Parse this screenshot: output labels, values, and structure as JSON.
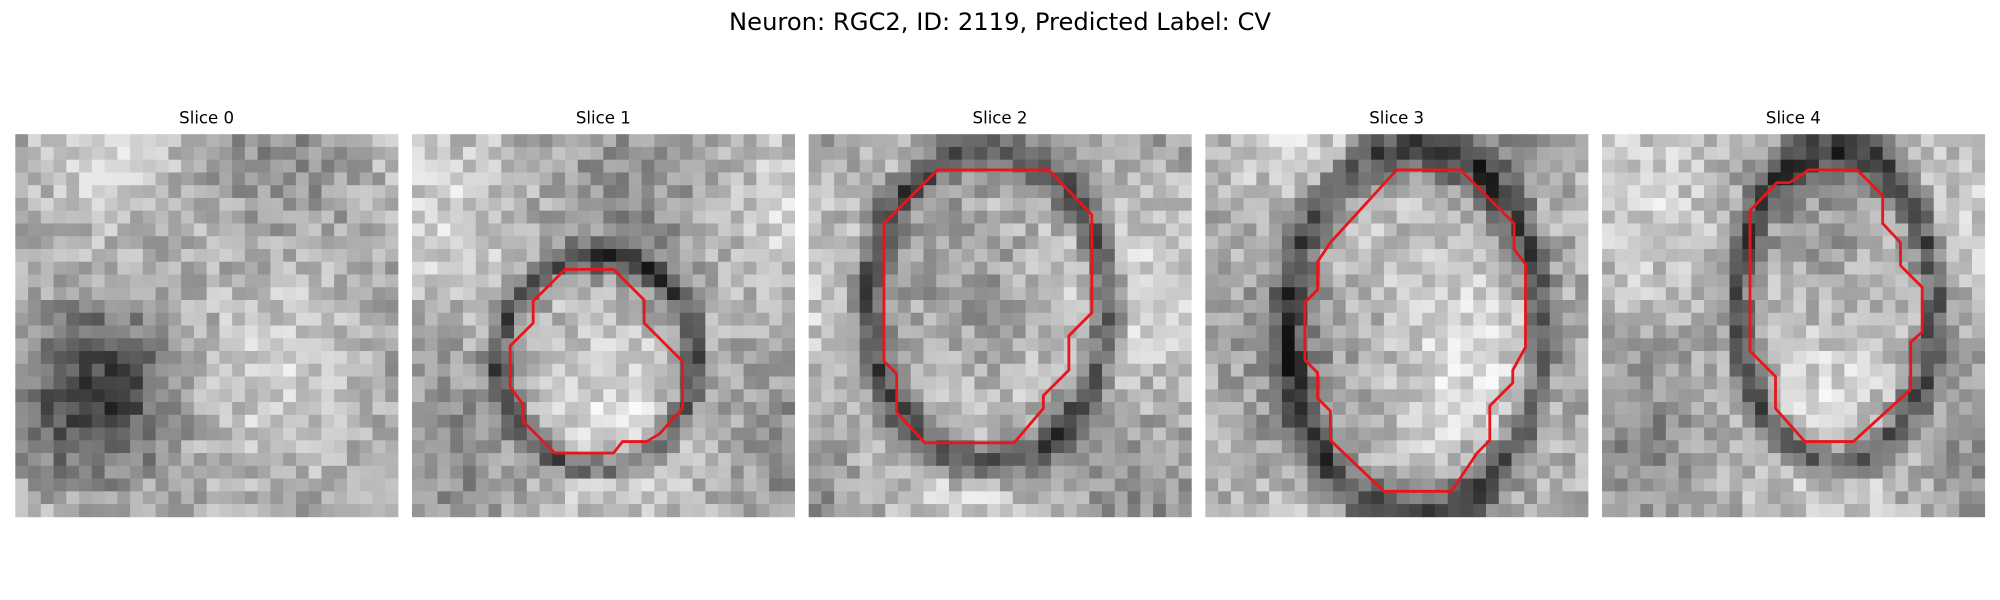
{
  "title": "Neuron: RGC2, ID: 2119, Predicted Label: CV",
  "panels": [
    {
      "title": "Slice 0"
    },
    {
      "title": "Slice 1"
    },
    {
      "title": "Slice 2"
    },
    {
      "title": "Slice 3"
    },
    {
      "title": "Slice 4"
    }
  ]
}
